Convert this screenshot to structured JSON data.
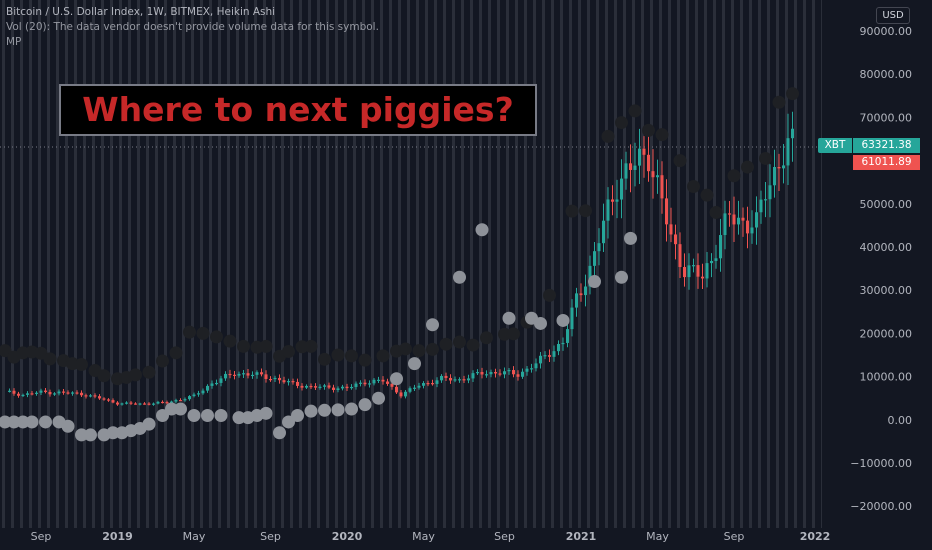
{
  "legend": {
    "symbol_line": "Bitcoin / U.S. Dollar Index, 1W, BITMEX, Heikin Ashi",
    "volume_line": "Vol (20): The data vendor doesn't provide volume data for this symbol.",
    "indicator_line": "MP"
  },
  "currency_button": "USD",
  "headline": "Where to next piggies?",
  "price_tags": {
    "symbol": "XBT",
    "last_price": "63321.38",
    "open_price": "61011.89"
  },
  "colors": {
    "background": "#131722",
    "stripe": "#2a2e39",
    "up": "#26a69a",
    "down": "#ef5350",
    "dot_upper": "#1e2024",
    "dot_lower": "#8e9299",
    "headline_text": "#c62828",
    "axis_text": "#b2b5be"
  },
  "chart_data": {
    "type": "candlestick",
    "chart_style": "Heikin Ashi",
    "ylim": [
      -25000,
      95000
    ],
    "y_ticks": [
      "90000.00",
      "80000.00",
      "70000.00",
      "60000.00",
      "50000.00",
      "40000.00",
      "30000.00",
      "20000.00",
      "10000.00",
      "0.00",
      "−10000.00",
      "−20000.00"
    ],
    "y_tick_values": [
      90000,
      80000,
      70000,
      60000,
      50000,
      40000,
      30000,
      20000,
      10000,
      0,
      -10000,
      -20000
    ],
    "x_ticks": [
      {
        "label": "Sep",
        "bold": false,
        "week": 8
      },
      {
        "label": "2019",
        "bold": true,
        "week": 25
      },
      {
        "label": "May",
        "bold": false,
        "week": 42
      },
      {
        "label": "Sep",
        "bold": false,
        "week": 59
      },
      {
        "label": "2020",
        "bold": true,
        "week": 76
      },
      {
        "label": "May",
        "bold": false,
        "week": 93
      },
      {
        "label": "Sep",
        "bold": false,
        "week": 111
      },
      {
        "label": "2021",
        "bold": true,
        "week": 128
      },
      {
        "label": "May",
        "bold": false,
        "week": 145
      },
      {
        "label": "Sep",
        "bold": false,
        "week": 162
      },
      {
        "label": "2022",
        "bold": true,
        "week": 180
      }
    ],
    "last_price": 63321.38,
    "open_price": 61011.89,
    "anchors": [
      [
        0,
        6500
      ],
      [
        4,
        5800
      ],
      [
        8,
        6400
      ],
      [
        12,
        6300
      ],
      [
        17,
        6000
      ],
      [
        21,
        5000
      ],
      [
        25,
        3800
      ],
      [
        30,
        3700
      ],
      [
        36,
        4000
      ],
      [
        42,
        5500
      ],
      [
        46,
        8500
      ],
      [
        51,
        10800
      ],
      [
        55,
        10500
      ],
      [
        59,
        9800
      ],
      [
        64,
        8300
      ],
      [
        68,
        7600
      ],
      [
        72,
        7500
      ],
      [
        76,
        7300
      ],
      [
        80,
        8800
      ],
      [
        84,
        9000
      ],
      [
        88,
        5800
      ],
      [
        92,
        8000
      ],
      [
        97,
        9500
      ],
      [
        101,
        9300
      ],
      [
        106,
        10800
      ],
      [
        110,
        11000
      ],
      [
        114,
        10500
      ],
      [
        118,
        13000
      ],
      [
        121,
        15500
      ],
      [
        124,
        18000
      ],
      [
        127,
        28000
      ],
      [
        130,
        35000
      ],
      [
        133,
        45000
      ],
      [
        136,
        55000
      ],
      [
        139,
        58000
      ],
      [
        143,
        62000
      ],
      [
        146,
        50000
      ],
      [
        148,
        42000
      ],
      [
        151,
        35000
      ],
      [
        155,
        33000
      ],
      [
        158,
        40000
      ],
      [
        161,
        47000
      ],
      [
        164,
        46000
      ],
      [
        167,
        45000
      ],
      [
        169,
        53000
      ],
      [
        172,
        60000
      ],
      [
        175,
        63321
      ]
    ],
    "upper_dots": [
      [
        0,
        16000
      ],
      [
        2,
        14500
      ],
      [
        4,
        15500
      ],
      [
        6,
        15700
      ],
      [
        8,
        15400
      ],
      [
        10,
        14100
      ],
      [
        13,
        13700
      ],
      [
        15,
        13000
      ],
      [
        17,
        12800
      ],
      [
        20,
        11400
      ],
      [
        22,
        10200
      ],
      [
        25,
        9500
      ],
      [
        27,
        9800
      ],
      [
        29,
        10400
      ],
      [
        32,
        11000
      ],
      [
        35,
        13600
      ],
      [
        38,
        15500
      ],
      [
        41,
        20300
      ],
      [
        44,
        20000
      ],
      [
        47,
        19200
      ],
      [
        50,
        18200
      ],
      [
        53,
        17000
      ],
      [
        56,
        16800
      ],
      [
        58,
        17000
      ],
      [
        61,
        14700
      ],
      [
        63,
        15800
      ],
      [
        66,
        16900
      ],
      [
        68,
        17000
      ],
      [
        71,
        14000
      ],
      [
        74,
        15000
      ],
      [
        77,
        14800
      ],
      [
        80,
        13800
      ],
      [
        84,
        14800
      ],
      [
        87,
        15900
      ],
      [
        89,
        16400
      ],
      [
        92,
        16000
      ],
      [
        95,
        16300
      ],
      [
        98,
        17500
      ],
      [
        101,
        18000
      ],
      [
        104,
        17300
      ],
      [
        107,
        19000
      ],
      [
        111,
        19800
      ],
      [
        113,
        19900
      ],
      [
        116,
        22600
      ],
      [
        121,
        28800
      ],
      [
        126,
        48300
      ],
      [
        129,
        48400
      ],
      [
        134,
        65600
      ],
      [
        137,
        68800
      ],
      [
        140,
        71500
      ],
      [
        143,
        67000
      ],
      [
        146,
        66000
      ],
      [
        150,
        60000
      ],
      [
        153,
        54000
      ],
      [
        156,
        52000
      ],
      [
        158,
        48000
      ],
      [
        162,
        56500
      ],
      [
        165,
        58500
      ],
      [
        169,
        60500
      ],
      [
        172,
        73500
      ],
      [
        175,
        75500
      ]
    ],
    "lower_dots": [
      [
        0,
        -500
      ],
      [
        2,
        -500
      ],
      [
        4,
        -500
      ],
      [
        6,
        -500
      ],
      [
        9,
        -500
      ],
      [
        12,
        -500
      ],
      [
        14,
        -1500
      ],
      [
        17,
        -3500
      ],
      [
        19,
        -3500
      ],
      [
        22,
        -3500
      ],
      [
        24,
        -3000
      ],
      [
        26,
        -3000
      ],
      [
        28,
        -2500
      ],
      [
        30,
        -2000
      ],
      [
        32,
        -1000
      ],
      [
        35,
        1000
      ],
      [
        37,
        2500
      ],
      [
        39,
        2500
      ],
      [
        42,
        1000
      ],
      [
        45,
        1000
      ],
      [
        48,
        1000
      ],
      [
        52,
        500
      ],
      [
        54,
        500
      ],
      [
        56,
        1000
      ],
      [
        58,
        1500
      ],
      [
        61,
        -3000
      ],
      [
        63,
        -500
      ],
      [
        65,
        1000
      ],
      [
        68,
        2000
      ],
      [
        71,
        2200
      ],
      [
        74,
        2300
      ],
      [
        77,
        2500
      ],
      [
        80,
        3500
      ],
      [
        83,
        5000
      ],
      [
        87,
        9500
      ],
      [
        91,
        13000
      ],
      [
        95,
        22000
      ],
      [
        101,
        33000
      ],
      [
        106,
        44000
      ],
      [
        112,
        23500
      ],
      [
        117,
        23500
      ],
      [
        119,
        22300
      ],
      [
        124,
        23000
      ],
      [
        131,
        32000
      ],
      [
        137,
        33000
      ],
      [
        139,
        42000
      ]
    ]
  }
}
